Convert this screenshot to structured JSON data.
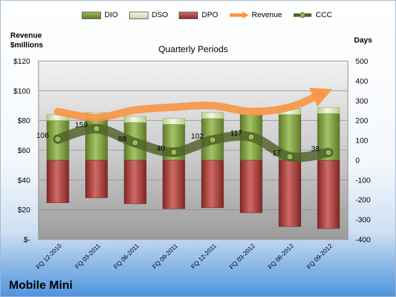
{
  "company": "Mobile Mini",
  "legend": {
    "dio": "DIO",
    "dso": "DSO",
    "dpo": "DPO",
    "revenue": "Revenue",
    "ccc": "CCC"
  },
  "axis_left_title_1": "Revenue",
  "axis_left_title_2": "$millions",
  "axis_right_title": "Days",
  "colors": {
    "dio": "#77933c",
    "dso": "#d7e4bd",
    "dpo": "#953735",
    "revenue": "#f79646",
    "ccc": "#4f6228"
  },
  "chart_data": {
    "type": "bar",
    "title": "Quarterly Periods",
    "categories": [
      "FQ 12-2010",
      "FQ 03-2011",
      "FQ 06-2011",
      "FQ 09-2011",
      "FQ 12-2011",
      "FQ 03-2012",
      "FQ 06-2012",
      "FQ 09-2012"
    ],
    "left_axis": {
      "label": "Revenue $millions",
      "ylim": [
        0,
        120
      ],
      "ticks": [
        0,
        20,
        40,
        60,
        80,
        100,
        120
      ],
      "tick_labels": [
        "$-",
        "$20",
        "$40",
        "$60",
        "$80",
        "$100",
        "$120"
      ]
    },
    "right_axis": {
      "label": "Days",
      "ylim": [
        -400,
        500
      ],
      "ticks": [
        -400,
        -300,
        -200,
        -100,
        0,
        100,
        200,
        300,
        400,
        500
      ],
      "tick_labels": [
        "-400",
        "-300",
        "-200",
        "-100",
        "0",
        "100",
        "200",
        "300",
        "400",
        "500"
      ]
    },
    "series": [
      {
        "name": "DIO",
        "type": "stacked-bar",
        "axis": "right",
        "values": [
          200,
          210,
          190,
          180,
          210,
          230,
          230,
          235
        ]
      },
      {
        "name": "DSO",
        "type": "stacked-bar",
        "axis": "right",
        "values": [
          30,
          30,
          30,
          30,
          30,
          30,
          30,
          30
        ]
      },
      {
        "name": "DPO",
        "type": "negative-bar",
        "axis": "right",
        "values": [
          -215,
          -190,
          -220,
          -245,
          -240,
          -265,
          -335,
          -345
        ]
      },
      {
        "name": "Revenue",
        "type": "line",
        "axis": "left",
        "values": [
          86,
          82,
          87,
          89,
          90,
          86,
          89,
          100
        ]
      },
      {
        "name": "CCC",
        "type": "line",
        "axis": "right",
        "values": [
          106,
          159,
          88,
          40,
          102,
          117,
          17,
          38
        ]
      }
    ],
    "ccc_labels": [
      "106",
      "159",
      "88",
      "40",
      "102",
      "117",
      "17",
      "38"
    ],
    "grid": true,
    "legend_position": "top"
  }
}
